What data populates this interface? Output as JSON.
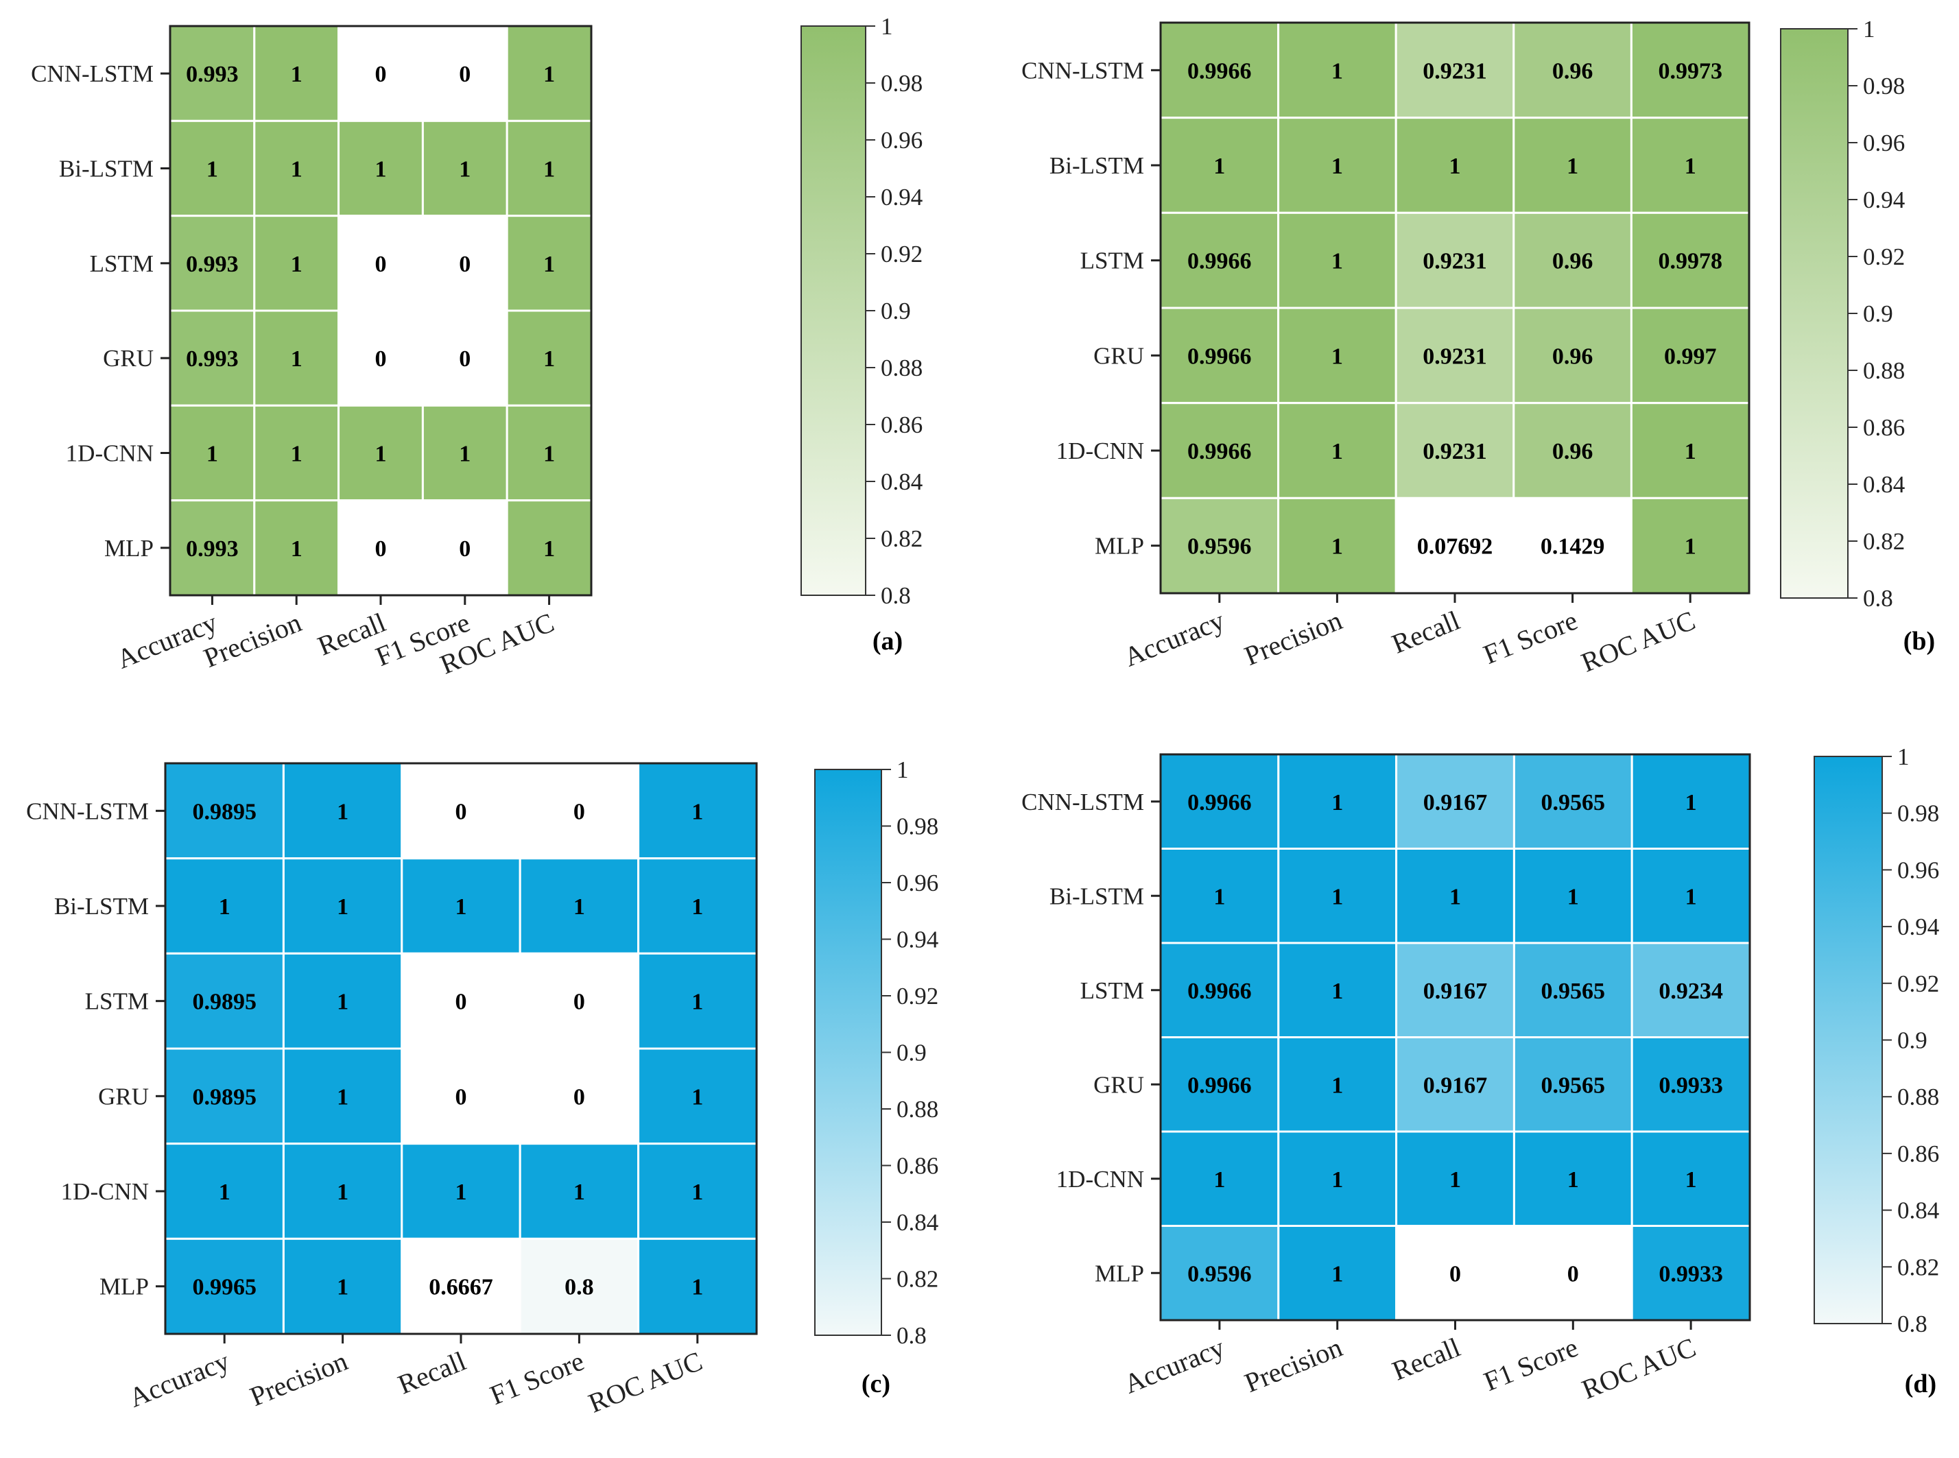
{
  "chart_data": [
    {
      "type": "heatmap",
      "panel_label": "(a)",
      "rows": [
        "CNN-LSTM",
        "Bi-LSTM",
        "LSTM",
        "GRU",
        "1D-CNN",
        "MLP"
      ],
      "columns": [
        "Accuracy",
        "Precision",
        "Recall",
        "F1 Score",
        "ROC AUC"
      ],
      "values": [
        [
          0.993,
          1,
          0,
          0,
          1
        ],
        [
          1,
          1,
          1,
          1,
          1
        ],
        [
          0.993,
          1,
          0,
          0,
          1
        ],
        [
          0.993,
          1,
          0,
          0,
          1
        ],
        [
          1,
          1,
          1,
          1,
          1
        ],
        [
          0.993,
          1,
          0,
          0,
          1
        ]
      ],
      "labels": [
        [
          "0.993",
          "1",
          "0",
          "0",
          "1"
        ],
        [
          "1",
          "1",
          "1",
          "1",
          "1"
        ],
        [
          "0.993",
          "1",
          "0",
          "0",
          "1"
        ],
        [
          "0.993",
          "1",
          "0",
          "0",
          "1"
        ],
        [
          "1",
          "1",
          "1",
          "1",
          "1"
        ],
        [
          "0.993",
          "1",
          "0",
          "0",
          "1"
        ]
      ],
      "vmin": 0.8,
      "vmax": 1,
      "colorbar_ticks": [
        "1",
        "0.98",
        "0.96",
        "0.94",
        "0.92",
        "0.9",
        "0.88",
        "0.86",
        "0.84",
        "0.82",
        "0.8"
      ],
      "colormap": [
        "#f5f9f0",
        "#92c06e"
      ]
    },
    {
      "type": "heatmap",
      "panel_label": "(b)",
      "rows": [
        "CNN-LSTM",
        "Bi-LSTM",
        "LSTM",
        "GRU",
        "1D-CNN",
        "MLP"
      ],
      "columns": [
        "Accuracy",
        "Precision",
        "Recall",
        "F1 Score",
        "ROC AUC"
      ],
      "values": [
        [
          0.9966,
          1,
          0.9231,
          0.96,
          0.9973
        ],
        [
          1,
          1,
          1,
          1,
          1
        ],
        [
          0.9966,
          1,
          0.9231,
          0.96,
          0.9978
        ],
        [
          0.9966,
          1,
          0.9231,
          0.96,
          0.997
        ],
        [
          0.9966,
          1,
          0.9231,
          0.96,
          1
        ],
        [
          0.9596,
          1,
          0.07692,
          0.1429,
          1
        ]
      ],
      "labels": [
        [
          "0.9966",
          "1",
          "0.9231",
          "0.96",
          "0.9973"
        ],
        [
          "1",
          "1",
          "1",
          "1",
          "1"
        ],
        [
          "0.9966",
          "1",
          "0.9231",
          "0.96",
          "0.9978"
        ],
        [
          "0.9966",
          "1",
          "0.9231",
          "0.96",
          "0.997"
        ],
        [
          "0.9966",
          "1",
          "0.9231",
          "0.96",
          "1"
        ],
        [
          "0.9596",
          "1",
          "0.07692",
          "0.1429",
          "1"
        ]
      ],
      "vmin": 0.8,
      "vmax": 1,
      "colorbar_ticks": [
        "1",
        "0.98",
        "0.96",
        "0.94",
        "0.92",
        "0.9",
        "0.88",
        "0.86",
        "0.84",
        "0.82",
        "0.8"
      ],
      "colormap": [
        "#f5f9f0",
        "#92c06e"
      ]
    },
    {
      "type": "heatmap",
      "panel_label": "(c)",
      "rows": [
        "CNN-LSTM",
        "Bi-LSTM",
        "LSTM",
        "GRU",
        "1D-CNN",
        "MLP"
      ],
      "columns": [
        "Accuracy",
        "Precision",
        "Recall",
        "F1 Score",
        "ROC AUC"
      ],
      "values": [
        [
          0.9895,
          1,
          0,
          0,
          1
        ],
        [
          1,
          1,
          1,
          1,
          1
        ],
        [
          0.9895,
          1,
          0,
          0,
          1
        ],
        [
          0.9895,
          1,
          0,
          0,
          1
        ],
        [
          1,
          1,
          1,
          1,
          1
        ],
        [
          0.9965,
          1,
          0.6667,
          0.8,
          1
        ]
      ],
      "labels": [
        [
          "0.9895",
          "1",
          "0",
          "0",
          "1"
        ],
        [
          "1",
          "1",
          "1",
          "1",
          "1"
        ],
        [
          "0.9895",
          "1",
          "0",
          "0",
          "1"
        ],
        [
          "0.9895",
          "1",
          "0",
          "0",
          "1"
        ],
        [
          "1",
          "1",
          "1",
          "1",
          "1"
        ],
        [
          "0.9965",
          "1",
          "0.6667",
          "0.8",
          "1"
        ]
      ],
      "vmin": 0.8,
      "vmax": 1,
      "colorbar_ticks": [
        "1",
        "0.98",
        "0.96",
        "0.94",
        "0.92",
        "0.9",
        "0.88",
        "0.86",
        "0.84",
        "0.82",
        "0.8"
      ],
      "colormap": [
        "#f3f9f9",
        "#0ea5dc"
      ]
    },
    {
      "type": "heatmap",
      "panel_label": "(d)",
      "rows": [
        "CNN-LSTM",
        "Bi-LSTM",
        "LSTM",
        "GRU",
        "1D-CNN",
        "MLP"
      ],
      "columns": [
        "Accuracy",
        "Precision",
        "Recall",
        "F1 Score",
        "ROC AUC"
      ],
      "values": [
        [
          0.9966,
          1,
          0.9167,
          0.9565,
          1
        ],
        [
          1,
          1,
          1,
          1,
          1
        ],
        [
          0.9966,
          1,
          0.9167,
          0.9565,
          0.9234
        ],
        [
          0.9966,
          1,
          0.9167,
          0.9565,
          0.9933
        ],
        [
          1,
          1,
          1,
          1,
          1
        ],
        [
          0.9596,
          1,
          0,
          0,
          0.9933
        ]
      ],
      "labels": [
        [
          "0.9966",
          "1",
          "0.9167",
          "0.9565",
          "1"
        ],
        [
          "1",
          "1",
          "1",
          "1",
          "1"
        ],
        [
          "0.9966",
          "1",
          "0.9167",
          "0.9565",
          "0.9234"
        ],
        [
          "0.9966",
          "1",
          "0.9167",
          "0.9565",
          "0.9933"
        ],
        [
          "1",
          "1",
          "1",
          "1",
          "1"
        ],
        [
          "0.9596",
          "1",
          "0",
          "0",
          "0.9933"
        ]
      ],
      "vmin": 0.8,
      "vmax": 1,
      "colorbar_ticks": [
        "1",
        "0.98",
        "0.96",
        "0.94",
        "0.92",
        "0.9",
        "0.88",
        "0.86",
        "0.84",
        "0.82",
        "0.8"
      ],
      "colormap": [
        "#f3f9f9",
        "#0ea5dc"
      ]
    }
  ]
}
